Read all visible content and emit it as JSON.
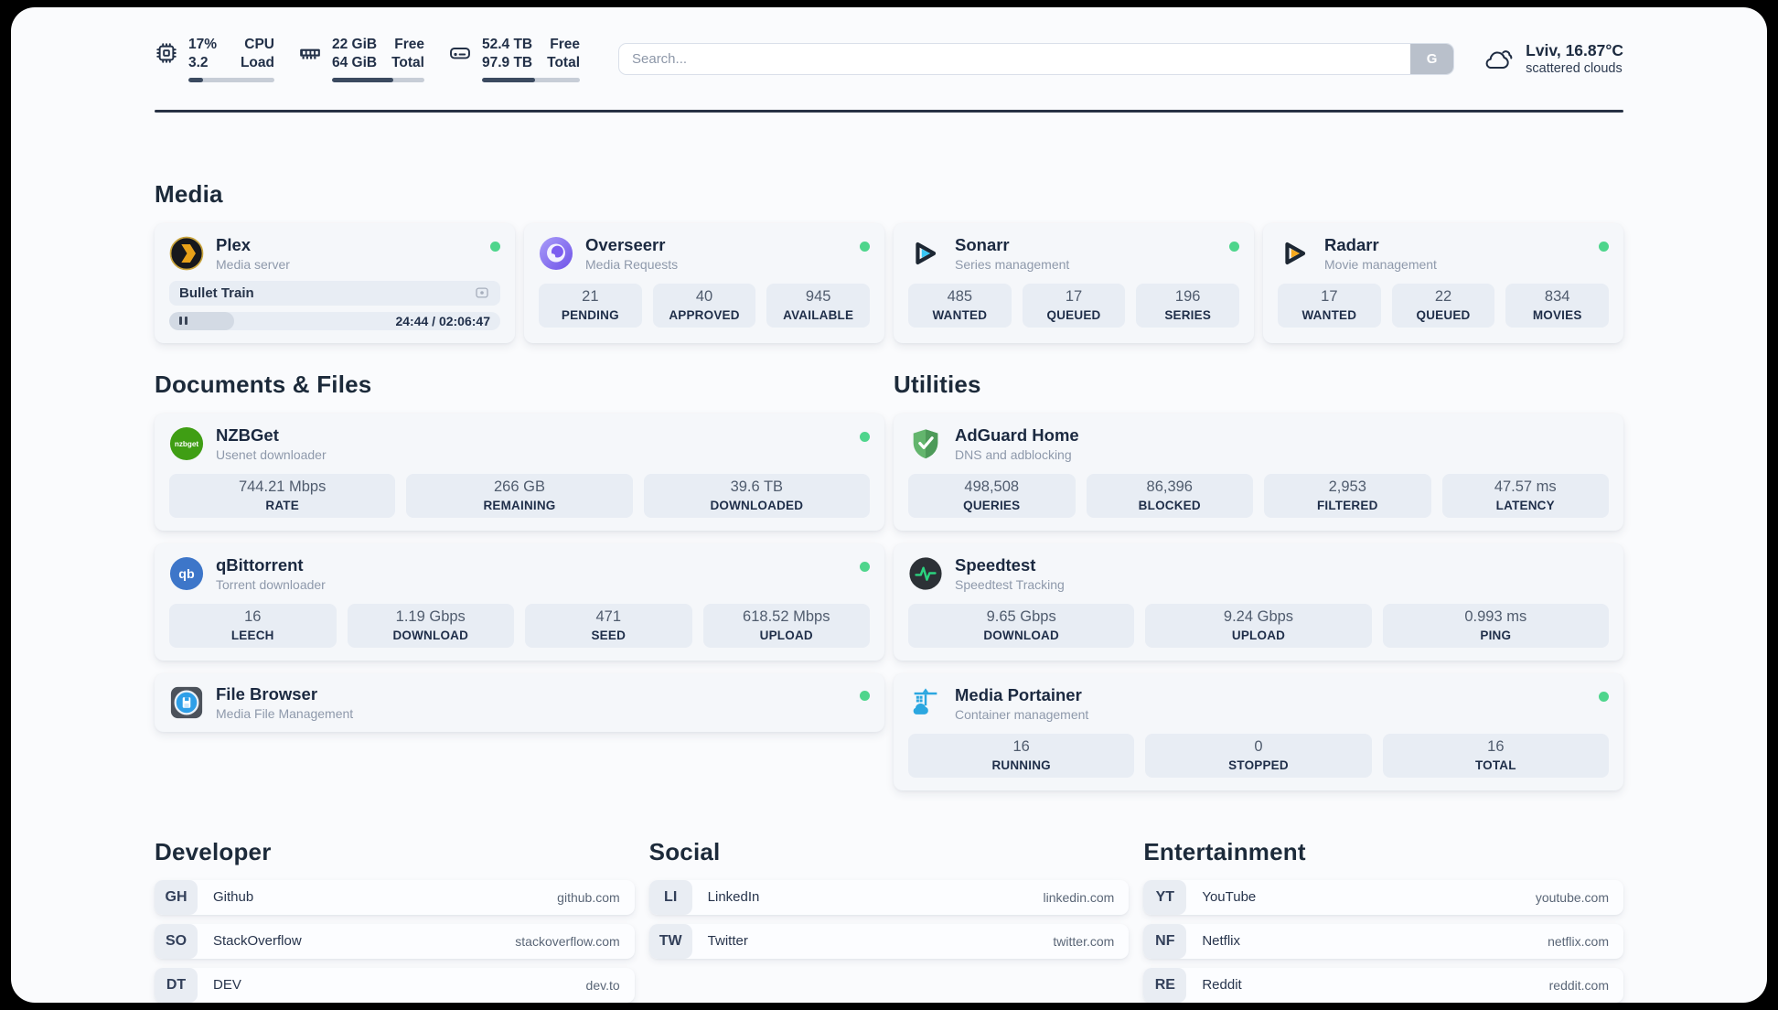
{
  "topbar": {
    "cpu": {
      "value1": "17%",
      "value2": "3.2",
      "label1": "CPU",
      "label2": "Load",
      "progress_pct": 17
    },
    "memory": {
      "value1": "22 GiB",
      "value2": "64 GiB",
      "label1": "Free",
      "label2": "Total",
      "progress_pct": 66
    },
    "disk": {
      "value1": "52.4 TB",
      "value2": "97.9 TB",
      "label1": "Free",
      "label2": "Total",
      "progress_pct": 54
    },
    "search": {
      "placeholder": "Search...",
      "button_label": "G"
    },
    "weather": {
      "location": "Lviv, 16.87°C",
      "condition": "scattered clouds"
    }
  },
  "sections": {
    "media": {
      "title": "Media",
      "plex": {
        "name": "Plex",
        "subtitle": "Media server",
        "status": "online",
        "now_playing": "Bullet Train",
        "time": "24:44 / 02:06:47",
        "progress_pct": 19.5
      },
      "overseerr": {
        "name": "Overseerr",
        "subtitle": "Media Requests",
        "status": "online",
        "stats": [
          {
            "value": "21",
            "label": "PENDING"
          },
          {
            "value": "40",
            "label": "APPROVED"
          },
          {
            "value": "945",
            "label": "AVAILABLE"
          }
        ]
      },
      "sonarr": {
        "name": "Sonarr",
        "subtitle": "Series management",
        "status": "online",
        "stats": [
          {
            "value": "485",
            "label": "WANTED"
          },
          {
            "value": "17",
            "label": "QUEUED"
          },
          {
            "value": "196",
            "label": "SERIES"
          }
        ]
      },
      "radarr": {
        "name": "Radarr",
        "subtitle": "Movie management",
        "status": "online",
        "stats": [
          {
            "value": "17",
            "label": "WANTED"
          },
          {
            "value": "22",
            "label": "QUEUED"
          },
          {
            "value": "834",
            "label": "MOVIES"
          }
        ]
      }
    },
    "documents": {
      "title": "Documents & Files",
      "nzbget": {
        "name": "NZBGet",
        "subtitle": "Usenet downloader",
        "status": "online",
        "stats": [
          {
            "value": "744.21 Mbps",
            "label": "RATE"
          },
          {
            "value": "266 GB",
            "label": "REMAINING"
          },
          {
            "value": "39.6 TB",
            "label": "DOWNLOADED"
          }
        ]
      },
      "qbittorrent": {
        "name": "qBittorrent",
        "subtitle": "Torrent downloader",
        "status": "online",
        "stats": [
          {
            "value": "16",
            "label": "LEECH"
          },
          {
            "value": "1.19 Gbps",
            "label": "DOWNLOAD"
          },
          {
            "value": "471",
            "label": "SEED"
          },
          {
            "value": "618.52 Mbps",
            "label": "UPLOAD"
          }
        ]
      },
      "filebrowser": {
        "name": "File Browser",
        "subtitle": "Media File Management",
        "status": "online"
      }
    },
    "utilities": {
      "title": "Utilities",
      "adguard": {
        "name": "AdGuard Home",
        "subtitle": "DNS and adblocking",
        "stats": [
          {
            "value": "498,508",
            "label": "QUERIES"
          },
          {
            "value": "86,396",
            "label": "BLOCKED"
          },
          {
            "value": "2,953",
            "label": "FILTERED"
          },
          {
            "value": "47.57 ms",
            "label": "LATENCY"
          }
        ]
      },
      "speedtest": {
        "name": "Speedtest",
        "subtitle": "Speedtest Tracking",
        "stats": [
          {
            "value": "9.65 Gbps",
            "label": "DOWNLOAD"
          },
          {
            "value": "9.24 Gbps",
            "label": "UPLOAD"
          },
          {
            "value": "0.993 ms",
            "label": "PING"
          }
        ]
      },
      "portainer": {
        "name": "Media Portainer",
        "subtitle": "Container management",
        "status": "online",
        "stats": [
          {
            "value": "16",
            "label": "RUNNING"
          },
          {
            "value": "0",
            "label": "STOPPED"
          },
          {
            "value": "16",
            "label": "TOTAL"
          }
        ]
      }
    },
    "links": {
      "developer": {
        "title": "Developer",
        "items": [
          {
            "badge": "GH",
            "name": "Github",
            "domain": "github.com"
          },
          {
            "badge": "SO",
            "name": "StackOverflow",
            "domain": "stackoverflow.com"
          },
          {
            "badge": "DT",
            "name": "DEV",
            "domain": "dev.to"
          }
        ]
      },
      "social": {
        "title": "Social",
        "items": [
          {
            "badge": "LI",
            "name": "LinkedIn",
            "domain": "linkedin.com"
          },
          {
            "badge": "TW",
            "name": "Twitter",
            "domain": "twitter.com"
          }
        ]
      },
      "entertainment": {
        "title": "Entertainment",
        "items": [
          {
            "badge": "YT",
            "name": "YouTube",
            "domain": "youtube.com"
          },
          {
            "badge": "NF",
            "name": "Netflix",
            "domain": "netflix.com"
          },
          {
            "badge": "RE",
            "name": "Reddit",
            "domain": "reddit.com"
          }
        ]
      }
    }
  },
  "palette": {
    "status_online": "#4ed58c",
    "plex": "#e8a119",
    "overseerr": "#7c5cf0",
    "sonarr": "#38c6f4",
    "radarr": "#f7a91c",
    "nzbget": "#3f9e14",
    "qbittorrent": "#3d76c9",
    "adguard": "#63b56d",
    "speedtest_pulse": "#2bd47f",
    "portainer": "#2ba7e0"
  }
}
